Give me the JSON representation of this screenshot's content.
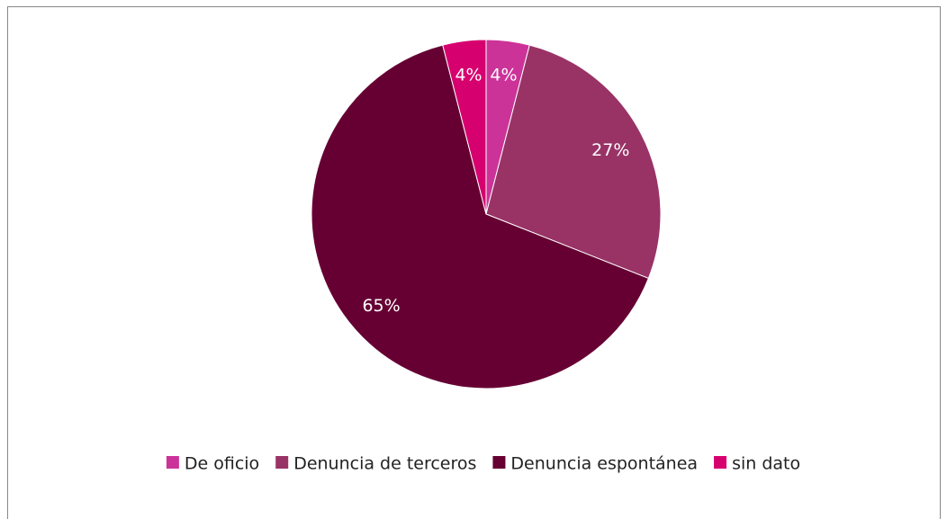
{
  "chart_data": {
    "type": "pie",
    "categories": [
      "De oficio",
      "Denuncia de terceros",
      "Denuncia espontánea",
      "sin dato"
    ],
    "values": [
      4,
      27,
      65,
      4
    ],
    "value_labels": [
      "4%",
      "27%",
      "65%",
      "4%"
    ],
    "colors": [
      "#cc3399",
      "#993366",
      "#660033",
      "#d6006f"
    ],
    "legend": "bottom"
  }
}
